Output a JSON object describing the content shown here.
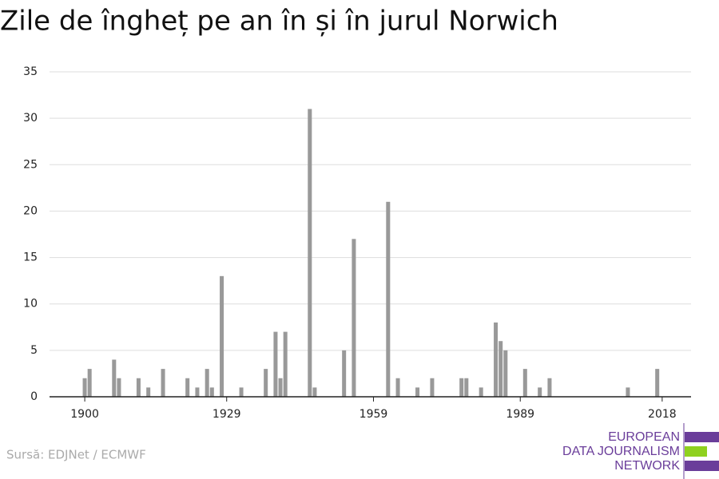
{
  "chart_data": {
    "type": "bar",
    "title": "Zile de îngheț pe an în și în jurul Norwich",
    "x": [
      1900,
      1901,
      1906,
      1907,
      1911,
      1913,
      1916,
      1921,
      1923,
      1925,
      1926,
      1928,
      1932,
      1937,
      1939,
      1940,
      1941,
      1946,
      1947,
      1953,
      1955,
      1962,
      1964,
      1968,
      1971,
      1977,
      1978,
      1981,
      1984,
      1985,
      1986,
      1990,
      1993,
      1995,
      2011,
      2017
    ],
    "values": [
      2,
      3,
      4,
      2,
      2,
      1,
      3,
      2,
      1,
      3,
      1,
      13,
      1,
      3,
      7,
      2,
      7,
      31,
      1,
      5,
      17,
      21,
      2,
      1,
      2,
      2,
      2,
      1,
      8,
      6,
      5,
      3,
      1,
      2,
      1,
      3
    ],
    "color": "#999999",
    "xlim": [
      1893.3,
      2024.4
    ],
    "xticks": [
      1900,
      1929,
      1959,
      1989,
      2018
    ],
    "ylim": [
      0,
      35
    ],
    "yticks": [
      0,
      5,
      10,
      15,
      20,
      25,
      30,
      35
    ],
    "grid": true,
    "source": "Sursă: EDJNet / ECMWF",
    "logo": [
      "EUROPEAN",
      "DATA JOURNALISM",
      "NETWORK"
    ]
  }
}
